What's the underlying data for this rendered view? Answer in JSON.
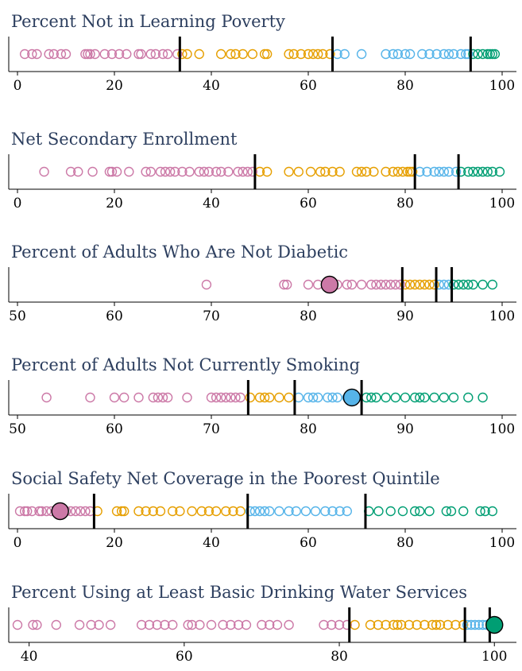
{
  "colors": {
    "q1": "#cc79a7",
    "q2": "#e69f00",
    "q3": "#56b4e9",
    "q4": "#009e73",
    "title": "#2d3f5f",
    "cutline": "#000000"
  },
  "chart_data": [
    {
      "type": "scatter",
      "title": "Percent Not in Learning Poverty",
      "xlim": [
        0,
        100
      ],
      "ticks": [
        0,
        20,
        40,
        60,
        80,
        100
      ],
      "cutoffs": [
        33.5,
        65,
        93.5
      ],
      "highlight": null,
      "values": [
        1.5,
        3,
        4,
        6.5,
        7.5,
        9,
        10,
        14,
        14.5,
        15,
        16,
        18,
        19.5,
        21,
        22.5,
        25,
        25.5,
        27.5,
        28.5,
        30,
        31,
        33,
        34,
        35,
        37.5,
        42,
        44,
        45,
        46.5,
        48.5,
        51,
        51.5,
        56,
        57,
        58.5,
        60,
        61,
        62,
        63,
        64.5,
        66,
        67.5,
        71,
        76,
        77.5,
        78.5,
        80,
        81,
        83.5,
        85,
        86.5,
        88,
        89,
        90,
        91.5,
        92.5,
        93,
        94,
        95,
        96,
        97,
        97.5,
        98,
        98.5
      ]
    },
    {
      "type": "scatter",
      "title": "Net Secondary Enrollment",
      "xlim": [
        0,
        100
      ],
      "ticks": [
        0,
        20,
        40,
        60,
        80,
        100
      ],
      "cutoffs": [
        49,
        82,
        91
      ],
      "highlight": null,
      "values": [
        5.5,
        11,
        12.5,
        15.5,
        19,
        19.5,
        20.5,
        23,
        26.5,
        27.5,
        29.5,
        30.5,
        31.5,
        32.5,
        34,
        35.5,
        37.5,
        38.5,
        39.5,
        41,
        42,
        43.5,
        45.5,
        46.5,
        47.5,
        48.5,
        50,
        51.5,
        56,
        58,
        60.5,
        62.5,
        63.5,
        65,
        66.5,
        70,
        71,
        72,
        73.5,
        76,
        77.5,
        78.5,
        79.5,
        80.5,
        81,
        81.5,
        83,
        84.5,
        86,
        87,
        88,
        89,
        90.5,
        91.5,
        93,
        94,
        95,
        96,
        97,
        98,
        99.5
      ]
    },
    {
      "type": "scatter",
      "title": "Percent of Adults Who Are Not Diabetic",
      "xlim": [
        50,
        100
      ],
      "ticks": [
        50,
        60,
        70,
        80,
        90,
        100
      ],
      "cutoffs": [
        89.7,
        93.2,
        94.8
      ],
      "highlight": {
        "value": 82.2,
        "group": "q1"
      },
      "values": [
        69.5,
        77.5,
        77.8,
        80,
        81,
        82,
        83,
        84,
        84.5,
        85.5,
        86.5,
        87,
        87.5,
        88,
        88.5,
        89,
        89.5,
        90,
        90.5,
        91,
        91.5,
        92,
        92.5,
        93,
        93.5,
        94,
        94.5,
        95,
        95.5,
        96,
        96.5,
        97,
        98,
        99
      ]
    },
    {
      "type": "scatter",
      "title": "Percent of Adults Not Currently Smoking",
      "xlim": [
        50,
        100
      ],
      "ticks": [
        50,
        60,
        70,
        80,
        90,
        100
      ],
      "cutoffs": [
        73.8,
        78.6,
        85.5
      ],
      "highlight": {
        "value": 84.5,
        "group": "q3"
      },
      "values": [
        53,
        57.5,
        60,
        61,
        62.5,
        64,
        64.5,
        65,
        65.5,
        67.5,
        70,
        70.5,
        71,
        71.5,
        72,
        72.5,
        73,
        74,
        75,
        75.5,
        76,
        77,
        78,
        79,
        80,
        80.5,
        81,
        82,
        82.5,
        83,
        84,
        85,
        86,
        86.5,
        87,
        88,
        89,
        90,
        91,
        91.5,
        92,
        93,
        94,
        95,
        96.5,
        98
      ]
    },
    {
      "type": "scatter",
      "title": "Social Safety Net Coverage in the Poorest Quintile",
      "xlim": [
        0,
        100
      ],
      "ticks": [
        0,
        20,
        40,
        60,
        80,
        100
      ],
      "cutoffs": [
        15.8,
        47.5,
        71.8
      ],
      "highlight": {
        "value": 8.8,
        "group": "q1"
      },
      "values": [
        0.5,
        1.5,
        2,
        3,
        4.5,
        5,
        6,
        7,
        9.5,
        10,
        11,
        12,
        13,
        14,
        15,
        16.5,
        20.5,
        21.5,
        22,
        25,
        26.5,
        28,
        29.5,
        32,
        33.5,
        36,
        38,
        39.5,
        41,
        43,
        44.5,
        46,
        48,
        49,
        50,
        51,
        52,
        54,
        56,
        57.5,
        59.5,
        61.5,
        63.5,
        65,
        66.5,
        68,
        72.5,
        74.5,
        77,
        79.5,
        82,
        83,
        85,
        88.5,
        89.5,
        92,
        95.5,
        96.5,
        98
      ]
    },
    {
      "type": "scatter",
      "title": "Percent Using at Least Basic Drinking Water Services",
      "xlim": [
        38.5,
        101
      ],
      "ticks": [
        40,
        60,
        80,
        100
      ],
      "cutoffs": [
        81.3,
        96.2,
        99.4
      ],
      "highlight": {
        "value": 100,
        "group": "q4"
      },
      "values": [
        38.5,
        40.5,
        41,
        43.5,
        46.5,
        48,
        49,
        50.5,
        54.5,
        55.5,
        56.5,
        57.5,
        58.5,
        60.5,
        61,
        62,
        63.5,
        65,
        66,
        67,
        68,
        70,
        71,
        72,
        73.5,
        78,
        79,
        80,
        81,
        82,
        84,
        85,
        86,
        87,
        87.5,
        88,
        89,
        90,
        91,
        92,
        92.5,
        93,
        94,
        95,
        96,
        96.5,
        97,
        97.5,
        98,
        98.5,
        99
      ]
    }
  ]
}
